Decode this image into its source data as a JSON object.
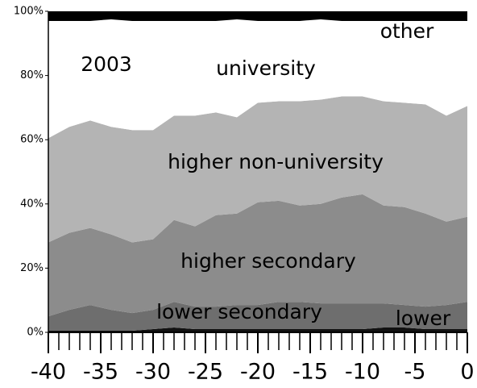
{
  "chart_data": {
    "type": "stacked-area",
    "annotation": "2003",
    "x": [
      -40,
      -38,
      -36,
      -34,
      -32,
      -30,
      -28,
      -26,
      -24,
      -22,
      -20,
      -18,
      -16,
      -14,
      -12,
      -10,
      -8,
      -6,
      -4,
      -2,
      0
    ],
    "series": [
      {
        "name": "lower",
        "color": "#111111",
        "values": [
          0.5,
          0.5,
          0.5,
          0.5,
          0.5,
          1,
          1.5,
          1,
          1,
          1,
          1,
          1,
          1,
          1,
          1,
          1,
          1.5,
          1.5,
          1,
          1,
          1
        ]
      },
      {
        "name": "lower secondary",
        "color": "#6e6e6e",
        "values": [
          4.5,
          6.5,
          8,
          6.5,
          5.5,
          6,
          8,
          7,
          7,
          7.5,
          7.5,
          8.5,
          8.5,
          8,
          8,
          8,
          7.5,
          7,
          7,
          7.5,
          8.5
        ]
      },
      {
        "name": "higher secondary",
        "color": "#8c8c8c",
        "values": [
          23,
          24,
          24,
          23.5,
          22,
          22,
          25.5,
          25,
          28.5,
          28.5,
          32,
          31.5,
          30,
          31,
          33,
          34,
          30.5,
          30.5,
          29,
          26,
          26.5
        ]
      },
      {
        "name": "higher non-university",
        "color": "#b4b4b4",
        "values": [
          32.5,
          33,
          33.5,
          33.5,
          35,
          34,
          32.5,
          34.5,
          32,
          30,
          31,
          31,
          32.5,
          32.5,
          31.5,
          30.5,
          32.5,
          32.5,
          34,
          33,
          34.5
        ]
      },
      {
        "name": "university",
        "color": "#ffffff",
        "values": [
          36.5,
          33,
          31,
          33.5,
          34,
          34,
          29.5,
          29.5,
          28.5,
          30.5,
          25.5,
          25,
          25,
          25,
          23.5,
          23.5,
          25,
          25.5,
          26,
          29.5,
          26.5
        ]
      },
      {
        "name": "other",
        "color": "#000000",
        "values": [
          3,
          3,
          3,
          2.5,
          3,
          3,
          3,
          3,
          3,
          2.5,
          3,
          3,
          3,
          2.5,
          3,
          3,
          3,
          3,
          3,
          3,
          3
        ]
      }
    ],
    "xlim": [
      -40,
      0
    ],
    "xticks": [
      -40,
      -35,
      -30,
      -25,
      -20,
      -15,
      -10,
      -5,
      0
    ],
    "xminorticks": [
      -40,
      -39,
      -38,
      -37,
      -36,
      -35,
      -34,
      -33,
      -32,
      -31,
      -30,
      -29,
      -28,
      -27,
      -26,
      -25,
      -24,
      -23,
      -22,
      -21,
      -20,
      -19,
      -18,
      -17,
      -16,
      -15,
      -14,
      -13,
      -12,
      -11,
      -10,
      -9,
      -8,
      -7,
      -6,
      -5,
      -4,
      -3,
      -2,
      -1,
      0
    ],
    "ylim": [
      0,
      100
    ],
    "yticks": [
      {
        "value": 0,
        "label": "0%"
      },
      {
        "value": 20,
        "label": "20%"
      },
      {
        "value": 40,
        "label": "40%"
      },
      {
        "value": 60,
        "label": "60%"
      },
      {
        "value": 80,
        "label": "80%"
      },
      {
        "value": 100,
        "label": "100%"
      }
    ]
  }
}
